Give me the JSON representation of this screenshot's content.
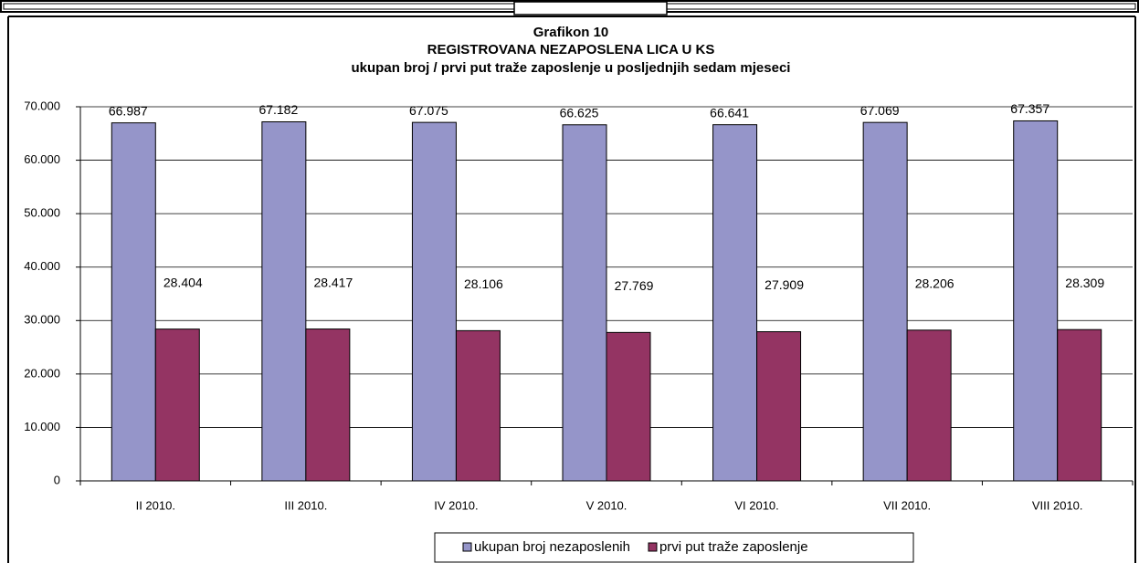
{
  "chart_data": {
    "type": "bar",
    "title": "Grafikon 10",
    "subtitle": "REGISTROVANA NEZAPOSLENA LICA U KS",
    "subtitle2": "ukupan broj / prvi put traže zaposlenje u posljednjih sedam mjeseci",
    "categories": [
      "II 2010.",
      "III 2010.",
      "IV 2010.",
      "V 2010.",
      "VI 2010.",
      "VII 2010.",
      "VIII 2010."
    ],
    "series": [
      {
        "name": "ukupan broj nezaposlenih",
        "color": "#9595c9",
        "values": [
          66987,
          67182,
          67075,
          66625,
          66641,
          67069,
          67357
        ],
        "value_labels": [
          "66.987",
          "67.182",
          "67.075",
          "66.625",
          "66.641",
          "67.069",
          "67.357"
        ]
      },
      {
        "name": "prvi put traže zaposlenje",
        "color": "#943463",
        "values": [
          28404,
          28417,
          28106,
          27769,
          27909,
          28206,
          28309
        ],
        "value_labels": [
          "28.404",
          "28.417",
          "28.106",
          "27.769",
          "27.909",
          "28.206",
          "28.309"
        ]
      }
    ],
    "ylim": [
      0,
      70000
    ],
    "yticks": [
      0,
      {
        "value": 10000,
        "label": "10.000"
      },
      {
        "value": 20000,
        "label": "20.000"
      },
      {
        "value": 30000,
        "label": "30.000"
      },
      {
        "value": 40000,
        "label": "40.000"
      },
      {
        "value": 50000,
        "label": "50.000"
      },
      {
        "value": 60000,
        "label": "60.000"
      },
      {
        "value": 70000,
        "label": "70.000"
      }
    ],
    "grid": true,
    "legend": "bottom"
  }
}
